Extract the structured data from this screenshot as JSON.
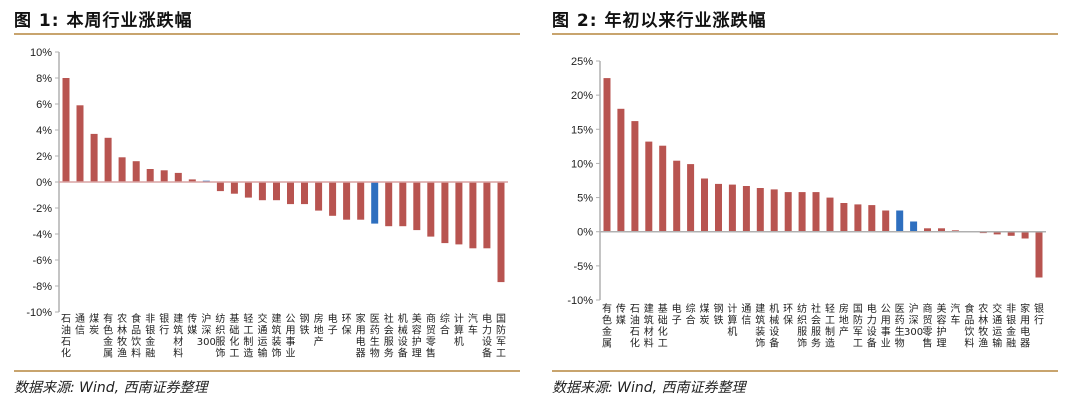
{
  "colors": {
    "bar": "#b85450",
    "highlight": "#2e6fbf",
    "rule": "#c8a46e",
    "axis": "#b0b0b0",
    "zero_line": "#d9a3a3"
  },
  "chart_data": [
    {
      "type": "bar",
      "title": "图 1:  本周行业涨跌幅",
      "source": "数据来源: Wind, 西南证券整理",
      "xlabel": "",
      "ylabel": "",
      "ylim": [
        -10,
        10
      ],
      "yticks": [
        10,
        8,
        6,
        4,
        2,
        0,
        -2,
        -4,
        -6,
        -8,
        -10
      ],
      "ytick_labels": [
        "10%",
        "8%",
        "6%",
        "4%",
        "2%",
        "0%",
        "-2%",
        "-4%",
        "-6%",
        "-8%",
        "-10%"
      ],
      "unit": "%",
      "highlight": [
        "沪深300",
        "医药生物"
      ],
      "categories": [
        "石油石化",
        "通信",
        "煤炭",
        "有色金属",
        "农林牧渔",
        "食品饮料",
        "非银金融",
        "银行",
        "建筑材料",
        "传媒",
        "沪深300",
        "纺织服饰",
        "基础化工",
        "轻工制造",
        "交通运输",
        "建筑装饰",
        "公用事业",
        "钢铁",
        "房地产",
        "电子",
        "环保",
        "家用电器",
        "医药生物",
        "社会服务",
        "机械设备",
        "美容护理",
        "商贸零售",
        "综合",
        "计算机",
        "汽车",
        "电力设备",
        "国防军工"
      ],
      "values": [
        8.0,
        5.9,
        3.7,
        3.4,
        1.9,
        1.6,
        1.0,
        0.9,
        0.7,
        0.2,
        0.1,
        -0.7,
        -0.9,
        -1.2,
        -1.4,
        -1.4,
        -1.7,
        -1.7,
        -2.2,
        -2.6,
        -2.9,
        -2.9,
        -3.2,
        -3.4,
        -3.4,
        -3.7,
        -4.2,
        -4.7,
        -4.8,
        -5.1,
        -5.1,
        -7.7
      ]
    },
    {
      "type": "bar",
      "title": "图 2:  年初以来行业涨跌幅",
      "source": "数据来源: Wind, 西南证券整理",
      "xlabel": "",
      "ylabel": "",
      "ylim": [
        -10,
        25
      ],
      "yticks": [
        25,
        20,
        15,
        10,
        5,
        0,
        -5,
        -10
      ],
      "ytick_labels": [
        "25%",
        "20%",
        "15%",
        "10%",
        "5%",
        "0%",
        "-5%",
        "-10%"
      ],
      "unit": "%",
      "highlight": [
        "医药生物",
        "沪深300"
      ],
      "categories": [
        "有色金属",
        "传媒",
        "石油石化",
        "建筑材料",
        "基础化工",
        "电子",
        "综合",
        "煤炭",
        "钢铁",
        "计算机",
        "通信",
        "建筑装饰",
        "机械设备",
        "环保",
        "纺织服饰",
        "社会服务",
        "轻工制造",
        "房地产",
        "国防军工",
        "电力设备",
        "公用事业",
        "医药生物",
        "沪深300",
        "商贸零售",
        "美容护理",
        "汽车",
        "食品饮料",
        "农林牧渔",
        "交通运输",
        "非银金融",
        "家用电器",
        "银行"
      ],
      "values": [
        22.5,
        18.0,
        16.2,
        13.2,
        12.6,
        10.4,
        9.9,
        7.8,
        7.0,
        6.9,
        6.7,
        6.4,
        6.2,
        5.8,
        5.8,
        5.8,
        5.0,
        4.2,
        4.0,
        3.9,
        3.1,
        3.1,
        1.5,
        0.5,
        0.5,
        0.2,
        0.1,
        -0.2,
        -0.4,
        -0.6,
        -1.0,
        -6.7
      ]
    }
  ]
}
